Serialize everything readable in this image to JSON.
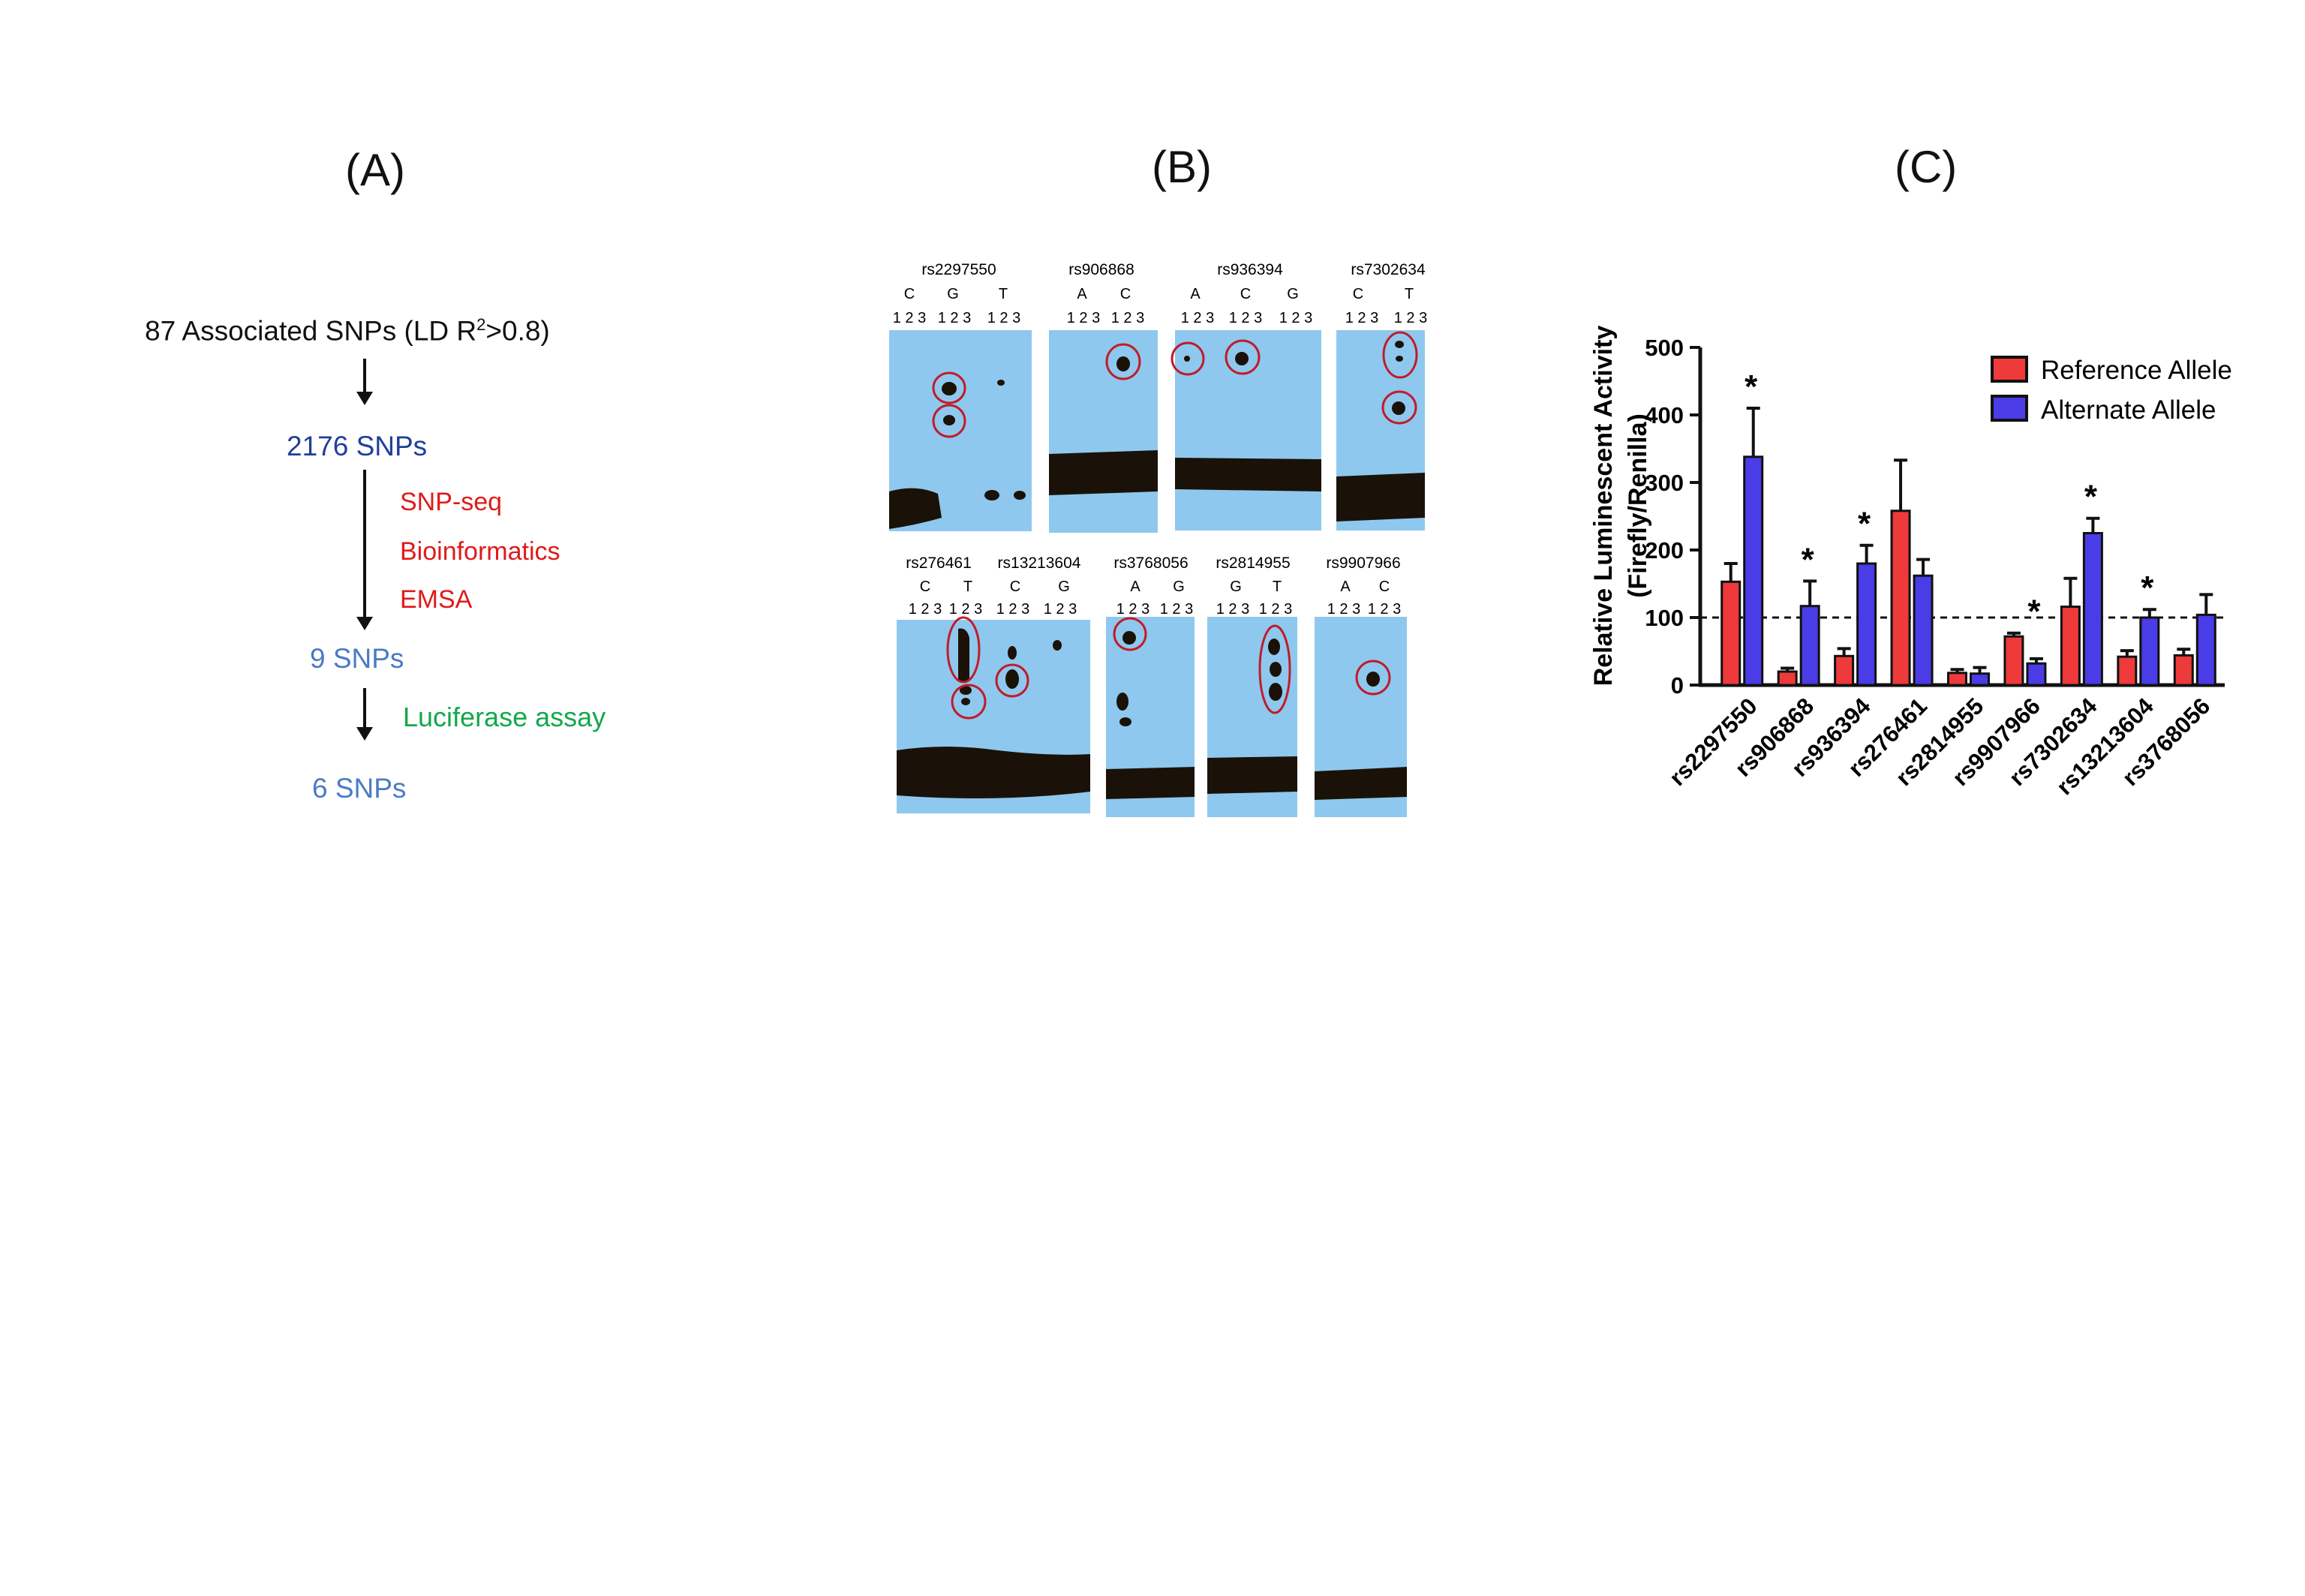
{
  "panels": {
    "a_label": "(A)",
    "b_label": "(B)",
    "c_label": "(C)"
  },
  "flow": {
    "top_prefix": "87 Associated SNPs  (LD R",
    "top_sup": "2",
    "top_suffix": ">0.8)",
    "n2176": "2176 SNPs",
    "step1": "SNP-seq",
    "step2": "Bioinformatics",
    "step3": "EMSA",
    "n9": "9 SNPs",
    "step4": "Luciferase assay",
    "n6": "6 SNPs",
    "colors": {
      "n2176": "#1f3f9a",
      "steps": "#e01a1a",
      "n_small": "#4a7bc4",
      "luciferase": "#12a84a"
    }
  },
  "gels": {
    "lanes": "1 2 3",
    "row1": [
      {
        "title": "rs2297550",
        "alleles": [
          "C",
          "G",
          "T"
        ]
      },
      {
        "title": "rs906868",
        "alleles": [
          "A",
          "C"
        ]
      },
      {
        "title": "rs936394",
        "alleles": [
          "A",
          "C",
          "G"
        ]
      },
      {
        "title": "rs7302634",
        "alleles": [
          "C",
          "T"
        ]
      }
    ],
    "row2": [
      {
        "title": "rs276461",
        "alleles": [
          "C",
          "T"
        ]
      },
      {
        "title": "rs13213604",
        "alleles": [
          "C",
          "G"
        ]
      },
      {
        "title": "rs3768056",
        "alleles": [
          "A",
          "G"
        ]
      },
      {
        "title": "rs2814955",
        "alleles": [
          "G",
          "T"
        ]
      },
      {
        "title": "rs9907966",
        "alleles": [
          "A",
          "C"
        ]
      }
    ],
    "colors": {
      "film": "#8fc8ee",
      "band": "#1a1208",
      "circle": "#c01c2a"
    }
  },
  "chart_data": {
    "type": "bar",
    "title": "",
    "ylabel_line1": "Relative Luminescent Activity",
    "ylabel_line2": "(Firefly/Renilla)",
    "xlabel": "",
    "ylim": [
      0,
      500
    ],
    "yticks": [
      "0",
      "100",
      "200",
      "300",
      "400",
      "500"
    ],
    "reference_line": 100,
    "categories": [
      "rs2297550",
      "rs906868",
      "rs936394",
      "rs276461",
      "rs2814955",
      "rs9907966",
      "rs7302634",
      "rs13213604",
      "rs3768056"
    ],
    "series": [
      {
        "name": "Reference Allele",
        "color": "#ee3a3a",
        "values": [
          153,
          20,
          43,
          258,
          18,
          72,
          116,
          42,
          44
        ],
        "errors": [
          27,
          5,
          11,
          75,
          5,
          5,
          42,
          9,
          9
        ]
      },
      {
        "name": "Alternate Allele",
        "color": "#4a3ce6",
        "values": [
          338,
          117,
          180,
          162,
          17,
          32,
          225,
          100,
          104
        ],
        "errors": [
          72,
          37,
          27,
          24,
          9,
          7,
          22,
          12,
          30
        ]
      }
    ],
    "significance": [
      "*",
      "*",
      "*",
      "",
      "",
      "*",
      "*",
      "*",
      ""
    ],
    "legend_position": "top-right"
  }
}
